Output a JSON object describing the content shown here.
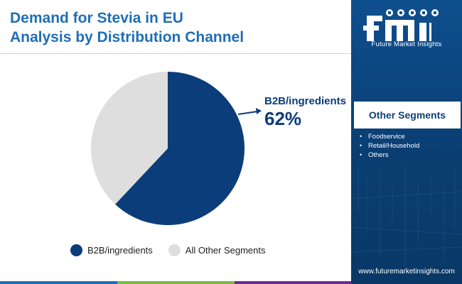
{
  "title": {
    "line1": "Demand for Stevia in EU",
    "line2": "Analysis by Distribution Channel"
  },
  "chart_data": {
    "type": "pie",
    "title": "Demand for Stevia in EU Analysis by Distribution Channel",
    "categories": [
      "B2B/ingredients",
      "All Other Segments"
    ],
    "values": [
      62,
      38
    ],
    "unit": "%",
    "colors": [
      "#0b3d7a",
      "#dedede"
    ],
    "legend_position": "bottom",
    "callout": {
      "label": "B2B/ingredients",
      "value": "62%"
    }
  },
  "legend": {
    "items": [
      {
        "label": "B2B/ingredients",
        "color": "#0b3d7a"
      },
      {
        "label": "All Other Segments",
        "color": "#dedede"
      }
    ]
  },
  "side_panel": {
    "logo_caption": "Future Market Insights",
    "other_segments_title": "Other Segments",
    "other_segments": [
      "Foodservice",
      "Retail/Household",
      "Others"
    ],
    "website": "www.futuremarketinsights.com"
  },
  "colors": {
    "title": "#1f6eb5",
    "accent_dark": "#0b3d7a",
    "panel": "#0a3e72",
    "bottom_bar": [
      "#1f6eb5",
      "#7dba3d",
      "#6a2c8f"
    ]
  },
  "icons": [
    "fmi-logo-icon",
    "arrow-right-icon",
    "bullet-icon"
  ]
}
